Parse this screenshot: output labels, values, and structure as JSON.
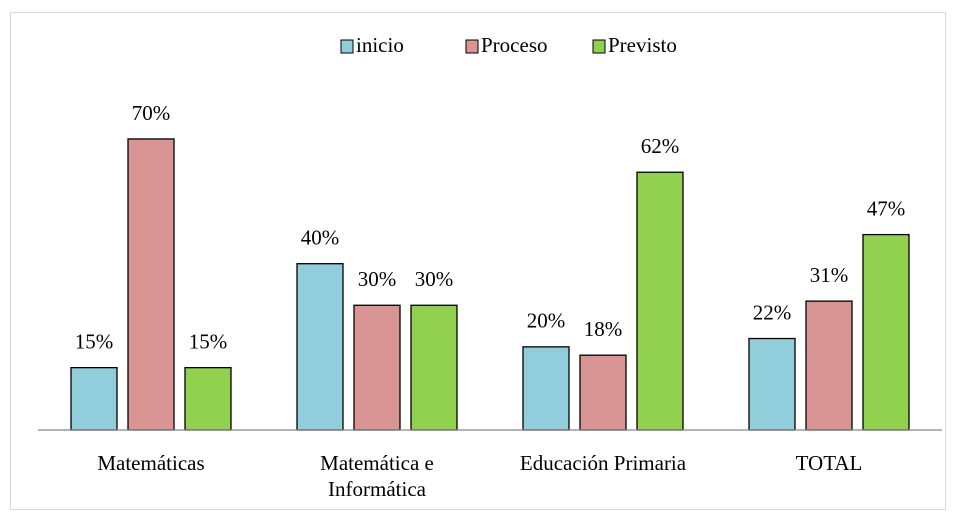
{
  "chart_data": {
    "type": "bar",
    "categories": [
      "Matemáticas",
      "Matemática e Informática",
      "Educación Primaria",
      "TOTAL"
    ],
    "series": [
      {
        "name": "inicio",
        "color": "#92cddc",
        "values": [
          15,
          40,
          20,
          22
        ],
        "value_labels": [
          "15%",
          "40%",
          "20%",
          "22%"
        ]
      },
      {
        "name": "Proceso",
        "color": "#d99594",
        "values": [
          70,
          30,
          18,
          31
        ],
        "value_labels": [
          "70%",
          "30%",
          "18%",
          "31%"
        ]
      },
      {
        "name": "Previsto",
        "color": "#92d050",
        "values": [
          15,
          30,
          62,
          47
        ],
        "value_labels": [
          "15%",
          "30%",
          "62%",
          "47%"
        ]
      }
    ],
    "ylim": [
      0,
      80
    ],
    "legend": "top"
  }
}
